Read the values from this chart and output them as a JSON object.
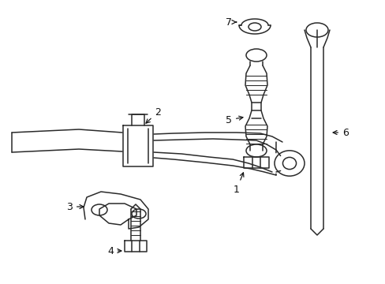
{
  "bg_color": "#ffffff",
  "line_color": "#2a2a2a",
  "lw": 1.1,
  "figsize": [
    4.89,
    3.6
  ],
  "dpi": 100
}
